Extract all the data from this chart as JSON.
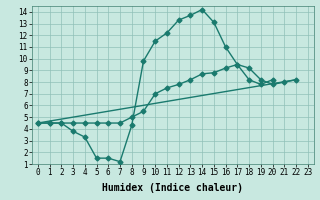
{
  "line1_x": [
    0,
    1,
    2,
    3,
    4,
    5,
    6,
    7,
    8,
    9,
    10,
    11,
    12,
    13,
    14,
    15,
    16,
    17,
    18,
    19,
    20
  ],
  "line1_y": [
    4.5,
    4.5,
    4.5,
    3.8,
    3.3,
    1.5,
    1.5,
    1.2,
    4.3,
    9.8,
    11.5,
    12.2,
    13.3,
    13.7,
    14.2,
    13.1,
    11.0,
    9.5,
    8.2,
    7.8,
    8.2
  ],
  "line2_x": [
    0,
    1,
    2,
    3,
    4,
    5,
    6,
    7,
    8,
    9,
    10,
    11,
    12,
    13,
    14,
    15,
    16,
    17,
    18,
    19,
    20,
    21,
    22
  ],
  "line2_y": [
    4.5,
    4.5,
    4.5,
    4.5,
    4.5,
    4.5,
    4.5,
    4.5,
    5.0,
    5.5,
    7.0,
    7.5,
    7.8,
    8.2,
    8.7,
    8.8,
    9.2,
    9.5,
    9.2,
    8.2,
    7.8,
    8.0,
    8.2
  ],
  "line3_x": [
    0,
    22
  ],
  "line3_y": [
    4.5,
    8.2
  ],
  "line_color": "#1a7a6e",
  "marker": "D",
  "markersize": 2.5,
  "linewidth": 1.0,
  "bg_color": "#c8e8e0",
  "grid_color": "#90c0b8",
  "xlabel": "Humidex (Indice chaleur)",
  "ylim": [
    1,
    14.5
  ],
  "xlim": [
    -0.5,
    23.5
  ],
  "yticks": [
    1,
    2,
    3,
    4,
    5,
    6,
    7,
    8,
    9,
    10,
    11,
    12,
    13,
    14
  ],
  "xticks": [
    0,
    1,
    2,
    3,
    4,
    5,
    6,
    7,
    8,
    9,
    10,
    11,
    12,
    13,
    14,
    15,
    16,
    17,
    18,
    19,
    20,
    21,
    22,
    23
  ],
  "tick_fontsize": 5.5,
  "xlabel_fontsize": 7.0
}
